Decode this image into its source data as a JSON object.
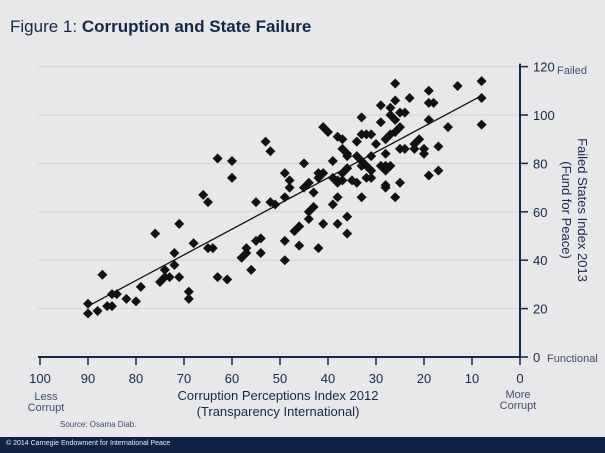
{
  "title": {
    "prefix": "Figure 1: ",
    "main": "Corruption and State Failure"
  },
  "source": "Source: Osama Diab.",
  "footer": "© 2014 Carnegie Endowment for International Peace",
  "colors": {
    "background": "#e8e8ea",
    "navy": "#14284b",
    "marker": "#111111",
    "grid": "#d4d4d8",
    "footer": "#0f2444"
  },
  "chart_data": {
    "type": "scatter",
    "title": "Corruption and State Failure",
    "xlabel": [
      "Corruption Perceptions Index 2012",
      "(Transparency International)"
    ],
    "ylabel": [
      "Failed States Index 2013",
      "(Fund for Peace)"
    ],
    "xlim": [
      100,
      0
    ],
    "ylim": [
      0,
      120
    ],
    "x_ticks": [
      "100",
      "90",
      "80",
      "70",
      "60",
      "50",
      "40",
      "30",
      "20",
      "10",
      "0"
    ],
    "y_ticks": [
      "0",
      "20",
      "40",
      "60",
      "80",
      "100",
      "120"
    ],
    "x_end_labels": {
      "left": [
        "Less",
        "Corrupt"
      ],
      "right": [
        "More",
        "Corrupt"
      ]
    },
    "y_end_labels": {
      "top": "Failed",
      "bottom": "Functional"
    },
    "grid": "horizontal",
    "marker": "diamond",
    "trendline": [
      [
        90,
        21
      ],
      [
        8,
        108
      ]
    ],
    "points": [
      [
        90,
        22
      ],
      [
        90,
        18
      ],
      [
        88,
        19
      ],
      [
        86,
        21
      ],
      [
        85,
        21
      ],
      [
        87,
        34
      ],
      [
        85,
        26
      ],
      [
        84,
        26
      ],
      [
        82,
        24
      ],
      [
        80,
        23
      ],
      [
        79,
        29
      ],
      [
        76,
        51
      ],
      [
        75,
        31
      ],
      [
        74,
        36
      ],
      [
        74,
        33
      ],
      [
        73,
        33
      ],
      [
        72,
        43
      ],
      [
        72,
        38
      ],
      [
        71,
        55
      ],
      [
        71,
        33
      ],
      [
        69,
        27
      ],
      [
        69,
        24
      ],
      [
        68,
        47
      ],
      [
        66,
        67
      ],
      [
        65,
        64
      ],
      [
        65,
        45
      ],
      [
        64,
        45
      ],
      [
        63,
        82
      ],
      [
        63,
        33
      ],
      [
        61,
        32
      ],
      [
        60,
        81
      ],
      [
        60,
        74
      ],
      [
        58,
        41
      ],
      [
        57,
        45
      ],
      [
        57,
        43
      ],
      [
        56,
        36
      ],
      [
        55,
        64
      ],
      [
        55,
        48
      ],
      [
        54,
        49
      ],
      [
        54,
        43
      ],
      [
        53,
        89
      ],
      [
        52,
        85
      ],
      [
        52,
        64
      ],
      [
        51,
        63
      ],
      [
        26,
        113
      ],
      [
        13,
        112
      ],
      [
        8,
        114
      ],
      [
        8,
        107
      ],
      [
        8,
        96
      ],
      [
        23,
        107
      ],
      [
        19,
        110
      ],
      [
        19,
        105
      ],
      [
        18,
        105
      ],
      [
        29,
        104
      ],
      [
        26,
        106
      ],
      [
        27,
        103
      ],
      [
        27,
        100
      ],
      [
        25,
        101
      ],
      [
        24,
        101
      ],
      [
        33,
        99
      ],
      [
        29,
        97
      ],
      [
        26,
        98
      ],
      [
        19,
        98
      ],
      [
        15,
        95
      ],
      [
        25,
        95
      ],
      [
        26,
        93
      ],
      [
        27,
        92
      ],
      [
        28,
        90
      ],
      [
        41,
        95
      ],
      [
        40,
        93
      ],
      [
        38,
        91
      ],
      [
        37,
        90
      ],
      [
        33,
        92
      ],
      [
        32,
        92
      ],
      [
        31,
        92
      ],
      [
        34,
        89
      ],
      [
        30,
        88
      ],
      [
        37,
        86
      ],
      [
        36,
        84
      ],
      [
        36,
        83
      ],
      [
        34,
        83
      ],
      [
        33,
        81
      ],
      [
        31,
        83
      ],
      [
        28,
        84
      ],
      [
        25,
        86
      ],
      [
        24,
        86
      ],
      [
        22,
        88
      ],
      [
        21,
        90
      ],
      [
        22,
        86
      ],
      [
        20,
        86
      ],
      [
        20,
        84
      ],
      [
        17,
        87
      ],
      [
        39,
        81
      ],
      [
        33,
        79
      ],
      [
        32,
        79
      ],
      [
        31,
        77
      ],
      [
        29,
        79
      ],
      [
        28,
        79
      ],
      [
        27,
        79
      ],
      [
        28,
        77
      ],
      [
        36,
        78
      ],
      [
        37,
        76
      ],
      [
        45,
        80
      ],
      [
        42,
        76
      ],
      [
        41,
        76
      ],
      [
        42,
        74
      ],
      [
        39,
        74
      ],
      [
        38,
        73
      ],
      [
        38,
        72
      ],
      [
        37,
        73
      ],
      [
        35,
        73
      ],
      [
        34,
        72
      ],
      [
        32,
        74
      ],
      [
        31,
        74
      ],
      [
        25,
        72
      ],
      [
        28,
        71
      ],
      [
        28,
        70
      ],
      [
        19,
        75
      ],
      [
        17,
        77
      ],
      [
        49,
        76
      ],
      [
        48,
        73
      ],
      [
        48,
        70
      ],
      [
        45,
        70
      ],
      [
        44,
        72
      ],
      [
        43,
        68
      ],
      [
        49,
        66
      ],
      [
        38,
        66
      ],
      [
        39,
        63
      ],
      [
        33,
        66
      ],
      [
        26,
        66
      ],
      [
        43,
        62
      ],
      [
        44,
        60
      ],
      [
        44,
        57
      ],
      [
        46,
        54
      ],
      [
        47,
        52
      ],
      [
        41,
        55
      ],
      [
        38,
        55
      ],
      [
        36,
        58
      ],
      [
        36,
        51
      ],
      [
        49,
        48
      ],
      [
        46,
        46
      ],
      [
        42,
        45
      ],
      [
        49,
        40
      ]
    ]
  }
}
